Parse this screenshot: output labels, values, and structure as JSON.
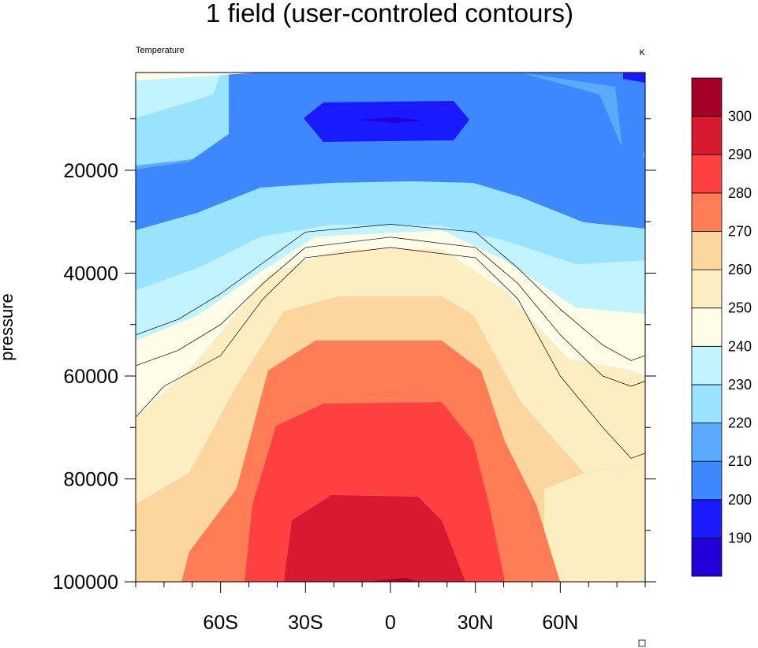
{
  "chart_data": {
    "type": "contour",
    "title": "1 field (user-controled contours)",
    "left_string": "Temperature",
    "right_string": "K",
    "ylabel": "pressure",
    "xlabel": "",
    "x_range": [
      -90,
      90
    ],
    "x_ticks": [
      {
        "value": -60,
        "label": "60S"
      },
      {
        "value": -30,
        "label": "30S"
      },
      {
        "value": 0,
        "label": "0"
      },
      {
        "value": 30,
        "label": "30N"
      },
      {
        "value": 60,
        "label": "60N"
      }
    ],
    "y_range": [
      1000,
      100000
    ],
    "y_reversed": true,
    "y_ticks": [
      20000,
      40000,
      60000,
      80000,
      100000
    ],
    "units": "K",
    "contour_levels": [
      190,
      200,
      210,
      220,
      230,
      240,
      250,
      260,
      270,
      280,
      290,
      300
    ],
    "colorbar": {
      "colors": [
        "#2200d8",
        "#1a1aff",
        "#3d87ff",
        "#5aabff",
        "#9ae3ff",
        "#c2f4ff",
        "#fffde8",
        "#fdeec2",
        "#fdd59e",
        "#ff7d55",
        "#ff4040",
        "#d81a30",
        "#a50026"
      ],
      "labels": [
        "190",
        "200",
        "210",
        "220",
        "230",
        "240",
        "250",
        "260",
        "270",
        "280",
        "290",
        "300"
      ]
    },
    "contour_lines": [
      {
        "level": 240,
        "points": [
          [
            -90,
            52000
          ],
          [
            -75,
            49000
          ],
          [
            -60,
            44000
          ],
          [
            -45,
            38000
          ],
          [
            -30,
            32000
          ],
          [
            0,
            30500
          ],
          [
            30,
            32000
          ],
          [
            45,
            39000
          ],
          [
            60,
            47000
          ],
          [
            75,
            54000
          ],
          [
            85,
            57000
          ],
          [
            90,
            56000
          ]
        ]
      },
      {
        "level": 250,
        "points": [
          [
            -90,
            58000
          ],
          [
            -75,
            55000
          ],
          [
            -60,
            50000
          ],
          [
            -45,
            42000
          ],
          [
            -30,
            35000
          ],
          [
            0,
            33000
          ],
          [
            30,
            35000
          ],
          [
            45,
            42000
          ],
          [
            60,
            52000
          ],
          [
            75,
            60000
          ],
          [
            85,
            62000
          ],
          [
            90,
            61000
          ]
        ]
      },
      {
        "level": 260,
        "points": [
          [
            -90,
            68000
          ],
          [
            -80,
            62000
          ],
          [
            -60,
            56000
          ],
          [
            -45,
            45000
          ],
          [
            -30,
            37000
          ],
          [
            0,
            35000
          ],
          [
            30,
            37000
          ],
          [
            45,
            45000
          ],
          [
            60,
            60000
          ],
          [
            75,
            70000
          ],
          [
            85,
            76000
          ],
          [
            90,
            75000
          ]
        ]
      }
    ],
    "grid": false,
    "legend": "right"
  }
}
